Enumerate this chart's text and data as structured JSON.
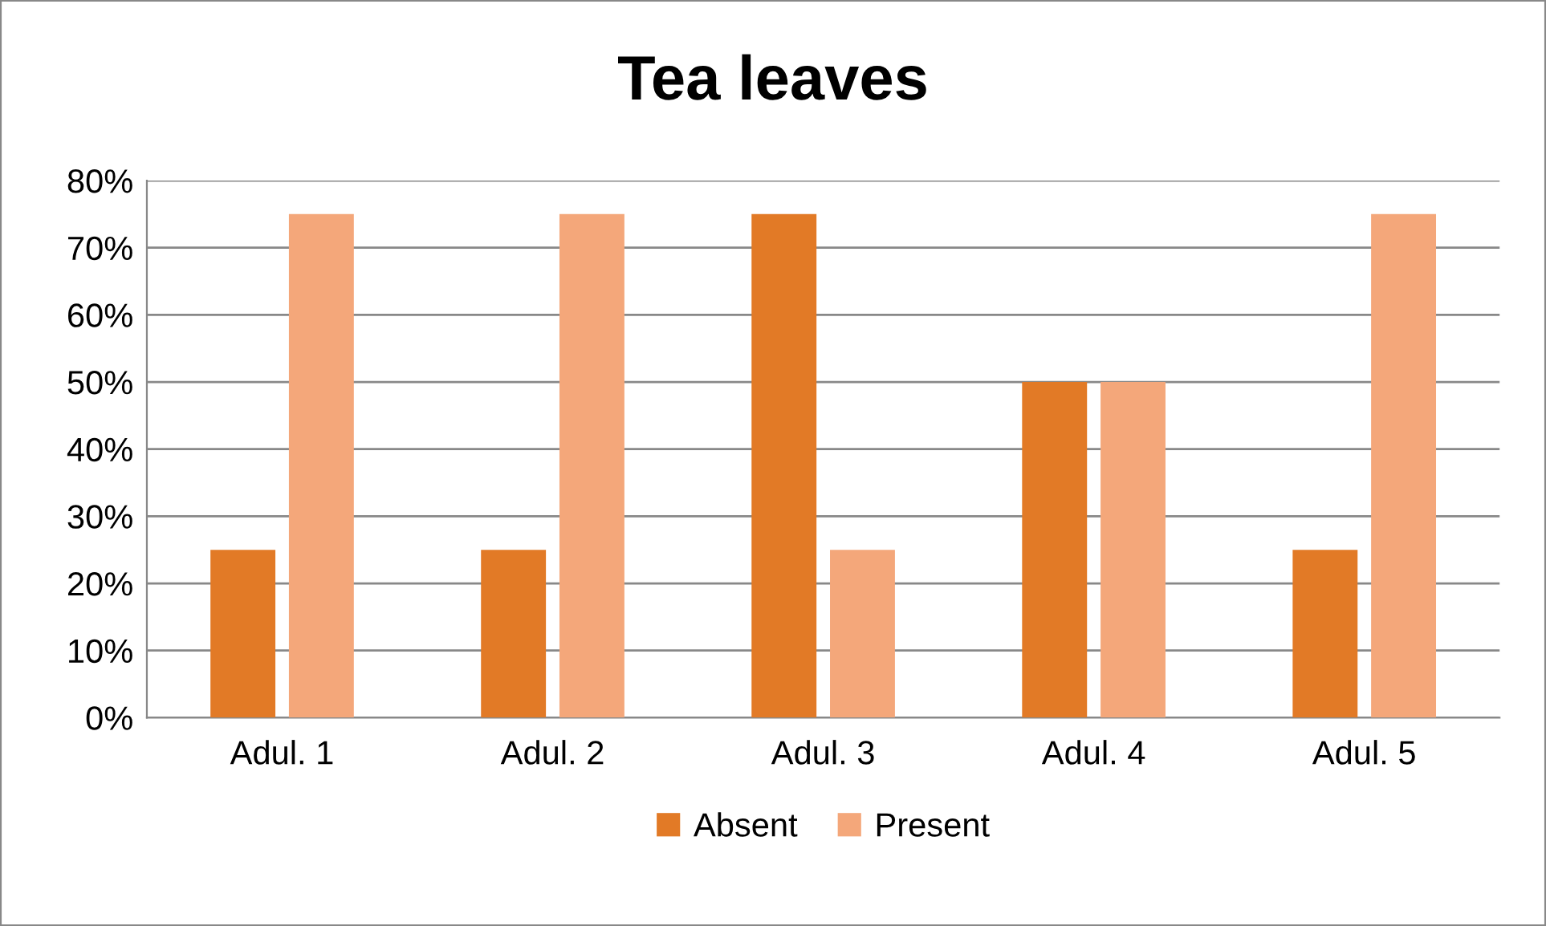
{
  "chart_data": {
    "type": "bar",
    "title": "Tea leaves",
    "categories": [
      "Adul. 1",
      "Adul. 2",
      "Adul. 3",
      "Adul. 4",
      "Adul. 5"
    ],
    "series": [
      {
        "name": "Absent",
        "color": "#e27a26",
        "values": [
          25,
          25,
          75,
          50,
          25
        ]
      },
      {
        "name": "Present",
        "color": "#f4a77a",
        "values": [
          75,
          75,
          25,
          50,
          75
        ]
      }
    ],
    "ylim": [
      0,
      80
    ],
    "yticks": [
      {
        "value": 0,
        "label": "0%"
      },
      {
        "value": 10,
        "label": "10%"
      },
      {
        "value": 20,
        "label": "20%"
      },
      {
        "value": 30,
        "label": "30%"
      },
      {
        "value": 40,
        "label": "40%"
      },
      {
        "value": 50,
        "label": "50%"
      },
      {
        "value": 60,
        "label": "60%"
      },
      {
        "value": 70,
        "label": "70%"
      },
      {
        "value": 80,
        "label": "80%"
      }
    ],
    "grid": "y",
    "legend": "bottom"
  }
}
